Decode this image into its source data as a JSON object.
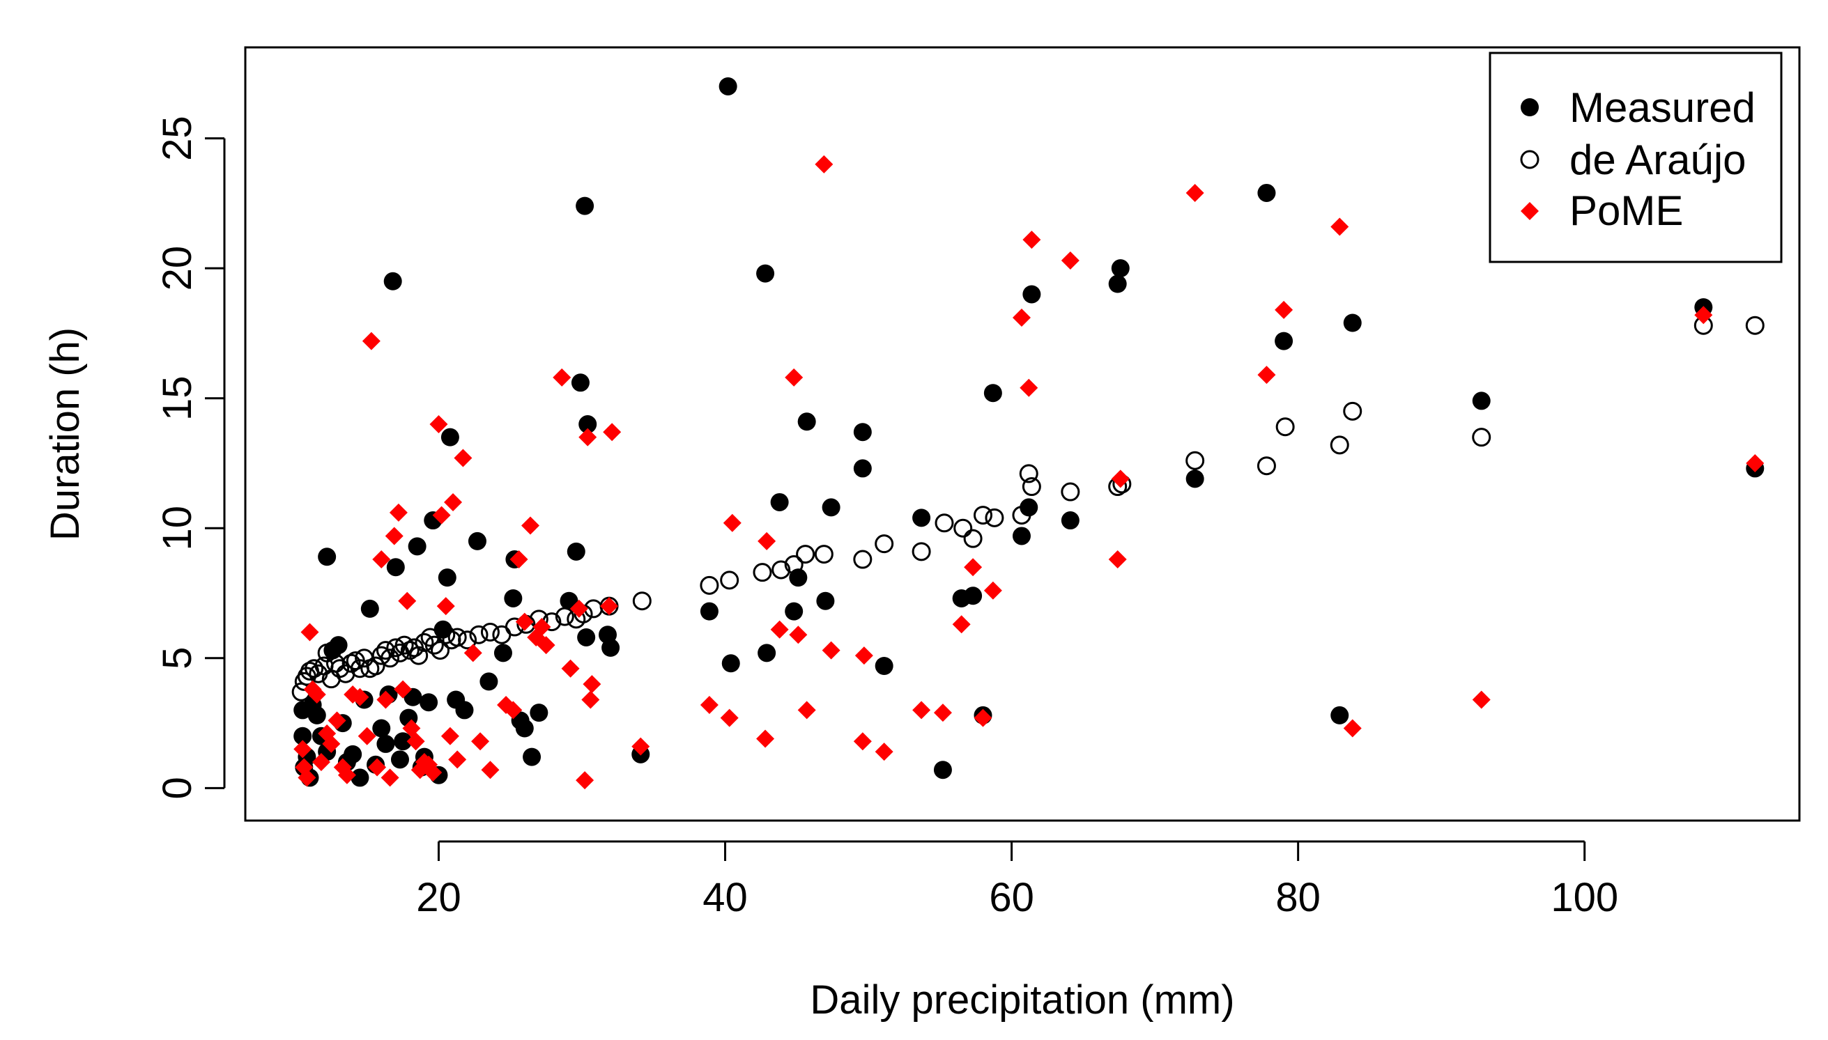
{
  "chart_data": {
    "type": "scatter",
    "title": "",
    "xlabel": "Daily precipitation (mm)",
    "ylabel": "Duration (h)",
    "xlim": [
      6.5,
      115
    ],
    "ylim": [
      -1.25,
      28.5
    ],
    "xticks": [
      20,
      40,
      60,
      80,
      100
    ],
    "yticks": [
      0,
      5,
      10,
      15,
      20,
      25
    ],
    "grid": false,
    "legend": {
      "position": "top-right",
      "entries": [
        {
          "label": "Measured",
          "marker": "filled-circle",
          "color": "#000000"
        },
        {
          "label": "de Araújo",
          "marker": "open-circle",
          "color": "#000000"
        },
        {
          "label": "PoME",
          "marker": "filled-diamond",
          "color": "#ff0000"
        }
      ]
    },
    "series": [
      {
        "name": "Measured",
        "marker": "filled-circle",
        "color": "#000000",
        "points": [
          [
            10.5,
            3.0
          ],
          [
            10.5,
            2.0
          ],
          [
            10.6,
            0.8
          ],
          [
            10.8,
            1.2
          ],
          [
            11,
            0.4
          ],
          [
            11.2,
            3.2
          ],
          [
            11.5,
            2.8
          ],
          [
            11.8,
            2.0
          ],
          [
            12.2,
            1.4
          ],
          [
            12.2,
            8.9
          ],
          [
            12.6,
            5.3
          ],
          [
            13,
            5.5
          ],
          [
            13.3,
            2.5
          ],
          [
            13.6,
            1.0
          ],
          [
            14,
            1.3
          ],
          [
            14.5,
            0.4
          ],
          [
            14.8,
            3.4
          ],
          [
            15.2,
            6.9
          ],
          [
            15.6,
            0.9
          ],
          [
            16,
            2.3
          ],
          [
            16.3,
            1.7
          ],
          [
            16.5,
            3.6
          ],
          [
            16.8,
            19.5
          ],
          [
            17,
            8.5
          ],
          [
            17.3,
            1.1
          ],
          [
            17.5,
            1.8
          ],
          [
            17.9,
            2.7
          ],
          [
            18.2,
            3.5
          ],
          [
            18.5,
            9.3
          ],
          [
            18.8,
            0.8
          ],
          [
            19,
            1.2
          ],
          [
            19.3,
            3.3
          ],
          [
            19.6,
            10.3
          ],
          [
            20,
            0.5
          ],
          [
            20.3,
            6.1
          ],
          [
            20.6,
            8.1
          ],
          [
            20.8,
            13.5
          ],
          [
            21.2,
            3.4
          ],
          [
            21.8,
            3.0
          ],
          [
            22.7,
            9.5
          ],
          [
            23.5,
            4.1
          ],
          [
            24.5,
            5.2
          ],
          [
            25.2,
            7.3
          ],
          [
            25.3,
            8.8
          ],
          [
            25.7,
            2.6
          ],
          [
            26,
            2.3
          ],
          [
            26.5,
            1.2
          ],
          [
            27,
            2.9
          ],
          [
            29.1,
            7.2
          ],
          [
            29.6,
            9.1
          ],
          [
            29.9,
            15.6
          ],
          [
            30.2,
            22.4
          ],
          [
            30.3,
            5.8
          ],
          [
            30.4,
            14.0
          ],
          [
            31.8,
            5.9
          ],
          [
            32,
            5.4
          ],
          [
            34.1,
            1.3
          ],
          [
            38.9,
            6.8
          ],
          [
            40.2,
            27.0
          ],
          [
            40.4,
            4.8
          ],
          [
            42.8,
            19.8
          ],
          [
            42.9,
            5.2
          ],
          [
            43.8,
            11.0
          ],
          [
            44.8,
            6.8
          ],
          [
            45.1,
            8.1
          ],
          [
            45.7,
            14.1
          ],
          [
            47,
            7.2
          ],
          [
            47.4,
            10.8
          ],
          [
            49.6,
            13.7
          ],
          [
            49.6,
            12.3
          ],
          [
            51.1,
            4.7
          ],
          [
            53.7,
            10.4
          ],
          [
            55.2,
            0.7
          ],
          [
            56.5,
            7.3
          ],
          [
            57.3,
            7.4
          ],
          [
            58,
            2.8
          ],
          [
            58.7,
            15.2
          ],
          [
            60.7,
            9.7
          ],
          [
            61.2,
            10.8
          ],
          [
            61.4,
            19.0
          ],
          [
            64.1,
            10.3
          ],
          [
            67.4,
            19.4
          ],
          [
            67.6,
            20.0
          ],
          [
            72.8,
            11.9
          ],
          [
            77.8,
            22.9
          ],
          [
            79,
            17.2
          ],
          [
            82.9,
            2.8
          ],
          [
            83.8,
            17.9
          ],
          [
            92.8,
            14.9
          ],
          [
            108.3,
            18.5
          ],
          [
            111.9,
            12.3
          ]
        ]
      },
      {
        "name": "de Araújo",
        "marker": "open-circle",
        "color": "#000000",
        "points": [
          [
            10.4,
            3.7
          ],
          [
            10.6,
            4.1
          ],
          [
            10.8,
            4.3
          ],
          [
            11,
            4.5
          ],
          [
            11.3,
            4.6
          ],
          [
            11.6,
            4.4
          ],
          [
            12,
            4.7
          ],
          [
            12.2,
            5.2
          ],
          [
            12.5,
            4.2
          ],
          [
            12.8,
            4.8
          ],
          [
            13.1,
            4.6
          ],
          [
            13.5,
            4.4
          ],
          [
            13.9,
            4.8
          ],
          [
            14.2,
            4.9
          ],
          [
            14.5,
            4.6
          ],
          [
            14.8,
            5.0
          ],
          [
            15.2,
            4.6
          ],
          [
            15.6,
            4.7
          ],
          [
            16,
            5.1
          ],
          [
            16.3,
            5.3
          ],
          [
            16.6,
            5.0
          ],
          [
            17,
            5.4
          ],
          [
            17.3,
            5.2
          ],
          [
            17.6,
            5.5
          ],
          [
            18,
            5.3
          ],
          [
            18.3,
            5.4
          ],
          [
            18.6,
            5.1
          ],
          [
            19,
            5.6
          ],
          [
            19.4,
            5.8
          ],
          [
            19.7,
            5.5
          ],
          [
            20.1,
            5.3
          ],
          [
            20.5,
            5.9
          ],
          [
            20.9,
            5.7
          ],
          [
            21.3,
            5.8
          ],
          [
            22,
            5.7
          ],
          [
            22.8,
            5.9
          ],
          [
            23.6,
            6.0
          ],
          [
            24.4,
            5.9
          ],
          [
            25.3,
            6.2
          ],
          [
            26.1,
            6.3
          ],
          [
            27,
            6.5
          ],
          [
            27.9,
            6.4
          ],
          [
            28.8,
            6.6
          ],
          [
            29.6,
            6.5
          ],
          [
            30.1,
            6.7
          ],
          [
            30.8,
            6.9
          ],
          [
            31.9,
            7.0
          ],
          [
            34.2,
            7.2
          ],
          [
            38.9,
            7.8
          ],
          [
            40.3,
            8.0
          ],
          [
            42.6,
            8.3
          ],
          [
            43.9,
            8.4
          ],
          [
            44.8,
            8.6
          ],
          [
            45.6,
            9.0
          ],
          [
            46.9,
            9.0
          ],
          [
            49.6,
            8.8
          ],
          [
            51.1,
            9.4
          ],
          [
            53.7,
            9.1
          ],
          [
            55.3,
            10.2
          ],
          [
            56.6,
            10.0
          ],
          [
            57.3,
            9.6
          ],
          [
            58,
            10.5
          ],
          [
            58.8,
            10.4
          ],
          [
            60.7,
            10.5
          ],
          [
            61.2,
            12.1
          ],
          [
            61.4,
            11.6
          ],
          [
            64.1,
            11.4
          ],
          [
            67.4,
            11.6
          ],
          [
            67.7,
            11.7
          ],
          [
            72.8,
            12.6
          ],
          [
            77.8,
            12.4
          ],
          [
            79.1,
            13.9
          ],
          [
            82.9,
            13.2
          ],
          [
            83.8,
            14.5
          ],
          [
            92.8,
            13.5
          ],
          [
            108.3,
            17.8
          ],
          [
            111.9,
            17.8
          ]
        ]
      },
      {
        "name": "PoME",
        "marker": "filled-diamond",
        "color": "#ff0000",
        "points": [
          [
            10.5,
            1.5
          ],
          [
            10.6,
            0.8
          ],
          [
            10.8,
            0.4
          ],
          [
            11,
            6.0
          ],
          [
            11.2,
            3.8
          ],
          [
            11.5,
            3.6
          ],
          [
            11.8,
            1.0
          ],
          [
            12.2,
            2.1
          ],
          [
            12.5,
            1.7
          ],
          [
            12.9,
            2.6
          ],
          [
            13.3,
            0.8
          ],
          [
            13.6,
            0.5
          ],
          [
            14,
            3.6
          ],
          [
            14.5,
            3.5
          ],
          [
            15,
            2.0
          ],
          [
            15.3,
            17.2
          ],
          [
            15.7,
            0.8
          ],
          [
            16,
            8.8
          ],
          [
            16.3,
            3.4
          ],
          [
            16.6,
            0.4
          ],
          [
            16.9,
            9.7
          ],
          [
            17.2,
            10.6
          ],
          [
            17.5,
            3.8
          ],
          [
            17.8,
            7.2
          ],
          [
            18.1,
            2.3
          ],
          [
            18.4,
            1.8
          ],
          [
            18.7,
            0.7
          ],
          [
            19,
            1.0
          ],
          [
            19.3,
            0.9
          ],
          [
            19.6,
            0.6
          ],
          [
            20,
            14.0
          ],
          [
            20.2,
            10.5
          ],
          [
            20.5,
            7.0
          ],
          [
            20.8,
            2.0
          ],
          [
            21,
            11.0
          ],
          [
            21.3,
            1.1
          ],
          [
            21.7,
            12.7
          ],
          [
            22.4,
            5.2
          ],
          [
            22.9,
            1.8
          ],
          [
            23.6,
            0.7
          ],
          [
            24.7,
            3.2
          ],
          [
            25.2,
            3.0
          ],
          [
            25.6,
            8.8
          ],
          [
            26,
            6.4
          ],
          [
            26.4,
            10.1
          ],
          [
            26.8,
            5.8
          ],
          [
            27.2,
            6.2
          ],
          [
            27.5,
            5.5
          ],
          [
            28.6,
            15.8
          ],
          [
            29.2,
            4.6
          ],
          [
            29.8,
            6.9
          ],
          [
            30.2,
            0.3
          ],
          [
            30.4,
            13.5
          ],
          [
            30.6,
            3.4
          ],
          [
            30.7,
            4.0
          ],
          [
            31.9,
            7.0
          ],
          [
            32.1,
            13.7
          ],
          [
            34.1,
            1.6
          ],
          [
            38.9,
            3.2
          ],
          [
            40.3,
            2.7
          ],
          [
            40.5,
            10.2
          ],
          [
            42.8,
            1.9
          ],
          [
            42.9,
            9.5
          ],
          [
            43.8,
            6.1
          ],
          [
            44.8,
            15.8
          ],
          [
            45.1,
            5.9
          ],
          [
            45.7,
            3.0
          ],
          [
            46.9,
            24.0
          ],
          [
            47.4,
            5.3
          ],
          [
            49.6,
            1.8
          ],
          [
            49.7,
            5.1
          ],
          [
            51.1,
            1.4
          ],
          [
            53.7,
            3.0
          ],
          [
            55.2,
            2.9
          ],
          [
            56.5,
            6.3
          ],
          [
            57.3,
            8.5
          ],
          [
            58,
            2.7
          ],
          [
            58.7,
            7.6
          ],
          [
            60.7,
            18.1
          ],
          [
            61.2,
            15.4
          ],
          [
            61.4,
            21.1
          ],
          [
            64.1,
            20.3
          ],
          [
            67.4,
            8.8
          ],
          [
            67.6,
            11.9
          ],
          [
            72.8,
            22.9
          ],
          [
            77.8,
            15.9
          ],
          [
            79,
            18.4
          ],
          [
            82.9,
            21.6
          ],
          [
            83.8,
            2.3
          ],
          [
            92.8,
            3.4
          ],
          [
            108.3,
            18.2
          ],
          [
            111.9,
            12.5
          ]
        ]
      }
    ]
  }
}
